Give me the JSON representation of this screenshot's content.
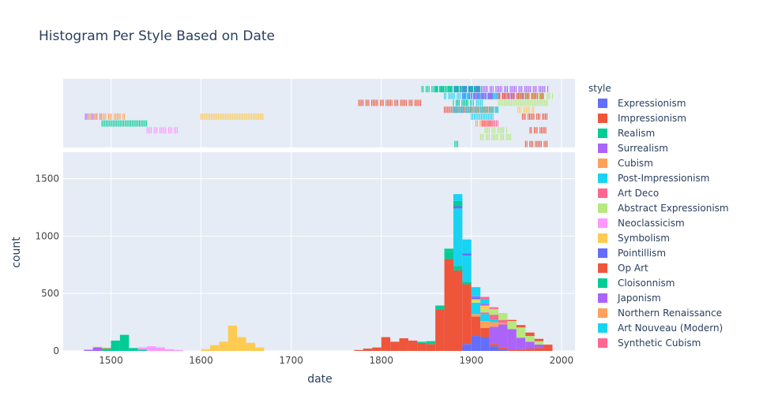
{
  "chart_data": {
    "type": "bar",
    "title": "Histogram Per Style Based on Date",
    "xlabel": "date",
    "ylabel": "count",
    "xlim": [
      1447,
      2015
    ],
    "ylim": [
      0,
      1730
    ],
    "x_ticks": [
      1500,
      1600,
      1700,
      1800,
      1900,
      2000
    ],
    "y_ticks": [
      0,
      500,
      1000,
      1500
    ],
    "bin_width": 10,
    "barmode": "stack",
    "marginal": "rug",
    "grid": true,
    "legend": {
      "title": "style",
      "position": "right"
    },
    "series": [
      {
        "name": "Expressionism",
        "color": "#636efa",
        "bins": [
          [
            1890,
            60
          ],
          [
            1900,
            130
          ],
          [
            1910,
            120
          ],
          [
            1920,
            40
          ],
          [
            1930,
            15
          ]
        ],
        "rug": [
          [
            1890,
            1925,
            2
          ]
        ]
      },
      {
        "name": "Impressionism",
        "color": "#EF553B",
        "bins": [
          [
            1770,
            8
          ],
          [
            1780,
            20
          ],
          [
            1790,
            30
          ],
          [
            1800,
            120
          ],
          [
            1810,
            80
          ],
          [
            1820,
            110
          ],
          [
            1830,
            90
          ],
          [
            1840,
            70
          ],
          [
            1850,
            60
          ],
          [
            1860,
            360
          ],
          [
            1870,
            800
          ],
          [
            1880,
            700
          ],
          [
            1890,
            520
          ],
          [
            1900,
            170
          ],
          [
            1910,
            80
          ],
          [
            1920,
            20
          ],
          [
            1930,
            15
          ],
          [
            1940,
            10
          ],
          [
            1950,
            15
          ],
          [
            1960,
            20
          ],
          [
            1970,
            25
          ],
          [
            1980,
            45
          ]
        ],
        "rug": [
          [
            1775,
            1845,
            3
          ],
          [
            1870,
            1925,
            4
          ],
          [
            1955,
            1985,
            5
          ],
          [
            1965,
            1985,
            7
          ]
        ]
      },
      {
        "name": "Realism",
        "color": "#00cc96",
        "bins": [
          [
            1490,
            20
          ],
          [
            1500,
            90
          ],
          [
            1510,
            140
          ],
          [
            1520,
            25
          ],
          [
            1530,
            10
          ],
          [
            1840,
            10
          ],
          [
            1850,
            25
          ],
          [
            1860,
            35
          ],
          [
            1870,
            60
          ],
          [
            1880,
            40
          ],
          [
            1890,
            20
          ]
        ],
        "rug": [
          [
            1490,
            1540,
            6
          ],
          [
            1880,
            1886,
            9
          ],
          [
            1845,
            1895,
            1
          ]
        ]
      },
      {
        "name": "Surrealism",
        "color": "#ab63fa",
        "bins": [
          [
            1470,
            10
          ],
          [
            1480,
            30
          ],
          [
            1920,
            150
          ],
          [
            1930,
            200
          ],
          [
            1940,
            180
          ],
          [
            1950,
            100
          ],
          [
            1960,
            60
          ],
          [
            1970,
            30
          ]
        ],
        "rug": [
          [
            1470,
            1490,
            5
          ],
          [
            1900,
            1985,
            1
          ],
          [
            1920,
            1960,
            2
          ]
        ]
      },
      {
        "name": "Cubism",
        "color": "#FFA15A",
        "bins": [
          [
            1900,
            20
          ],
          [
            1910,
            60
          ],
          [
            1920,
            40
          ],
          [
            1930,
            15
          ]
        ],
        "rug": [
          [
            1900,
            1930,
            4
          ],
          [
            1905,
            1925,
            6
          ]
        ]
      },
      {
        "name": "Post-Impressionism",
        "color": "#19d3f3",
        "bins": [
          [
            1880,
            500
          ],
          [
            1890,
            230
          ],
          [
            1900,
            100
          ],
          [
            1910,
            60
          ],
          [
            1920,
            25
          ]
        ],
        "rug": [
          [
            1870,
            1930,
            2
          ],
          [
            1880,
            1915,
            3
          ],
          [
            1880,
            1890,
            4
          ]
        ]
      },
      {
        "name": "Art Deco",
        "color": "#FF6692",
        "bins": [
          [
            1910,
            15
          ],
          [
            1920,
            40
          ],
          [
            1930,
            25
          ]
        ],
        "rug": [
          [
            1915,
            1930,
            6
          ]
        ]
      },
      {
        "name": "Abstract Expressionism",
        "color": "#B6E880",
        "bins": [
          [
            1900,
            10
          ],
          [
            1910,
            30
          ],
          [
            1920,
            50
          ],
          [
            1930,
            60
          ],
          [
            1940,
            70
          ],
          [
            1950,
            90
          ],
          [
            1960,
            50
          ],
          [
            1970,
            30
          ]
        ],
        "rug": [
          [
            1910,
            1945,
            8
          ],
          [
            1915,
            1940,
            7
          ],
          [
            1930,
            1985,
            3
          ],
          [
            1950,
            1990,
            2
          ]
        ]
      },
      {
        "name": "Neoclassicism",
        "color": "#FF97FF",
        "bins": [
          [
            1530,
            20
          ],
          [
            1540,
            40
          ],
          [
            1550,
            30
          ],
          [
            1560,
            15
          ],
          [
            1570,
            8
          ]
        ],
        "rug": [
          [
            1540,
            1575,
            7
          ]
        ]
      },
      {
        "name": "Symbolism",
        "color": "#FECB52",
        "bins": [
          [
            1600,
            15
          ],
          [
            1610,
            50
          ],
          [
            1620,
            80
          ],
          [
            1630,
            220
          ],
          [
            1640,
            120
          ],
          [
            1650,
            70
          ],
          [
            1660,
            30
          ],
          [
            1900,
            20
          ],
          [
            1910,
            30
          ]
        ],
        "rug": [
          [
            1600,
            1670,
            5
          ],
          [
            1950,
            1970,
            4
          ]
        ]
      },
      {
        "name": "Pointillism",
        "color": "#636efa",
        "bins": [
          [
            1880,
            20
          ],
          [
            1890,
            20
          ],
          [
            1900,
            15
          ]
        ],
        "rug": [
          [
            1880,
            1910,
            1
          ]
        ]
      },
      {
        "name": "Op Art",
        "color": "#EF553B",
        "bins": [
          [
            1940,
            10
          ],
          [
            1950,
            20
          ],
          [
            1960,
            30
          ],
          [
            1970,
            20
          ],
          [
            1980,
            10
          ]
        ],
        "rug": [
          [
            1960,
            1985,
            9
          ],
          [
            1930,
            1980,
            2
          ]
        ]
      },
      {
        "name": "Cloisonnism",
        "color": "#00cc96",
        "bins": [
          [
            1870,
            30
          ],
          [
            1880,
            45
          ]
        ],
        "rug": [
          [
            1860,
            1910,
            1
          ],
          [
            1880,
            1900,
            3
          ]
        ]
      },
      {
        "name": "Japonism",
        "color": "#ab63fa",
        "bins": [
          [
            1900,
            10
          ],
          [
            1910,
            15
          ]
        ],
        "rug": [
          [
            1900,
            1925,
            2
          ]
        ]
      },
      {
        "name": "Northern Renaissance",
        "color": "#FFA15A",
        "bins": [
          [
            1480,
            5
          ],
          [
            1490,
            8
          ]
        ],
        "rug": [
          [
            1475,
            1515,
            5
          ]
        ]
      },
      {
        "name": "Art Nouveau (Modern)",
        "color": "#19d3f3",
        "bins": [
          [
            1880,
            60
          ],
          [
            1890,
            120
          ],
          [
            1900,
            80
          ],
          [
            1910,
            40
          ]
        ],
        "rug": [
          [
            1880,
            1930,
            4
          ],
          [
            1900,
            1925,
            5
          ]
        ]
      },
      {
        "name": "Synthetic Cubism",
        "color": "#FF6692",
        "bins": [
          [
            1910,
            20
          ],
          [
            1920,
            15
          ]
        ],
        "rug": [
          [
            1912,
            1925,
            6
          ]
        ]
      }
    ]
  }
}
